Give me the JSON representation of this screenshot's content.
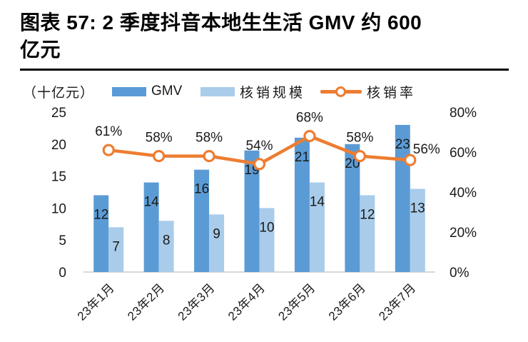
{
  "title": {
    "line1": "图表 57: 2 季度抖音本地生生活 GMV 约 600",
    "line2": "亿元"
  },
  "legend": {
    "unit_label": "（十亿元）",
    "position": "top"
  },
  "colors": {
    "bar_dark": "#5B9BD5",
    "bar_light": "#A9CCEA",
    "line_orange": "#ED7D31",
    "axis_baseline": "#D9D9D9",
    "text": "#1A1A1A",
    "title_text": "#000000",
    "title_rule": "#000000"
  },
  "chart_data": {
    "type": "bar",
    "subtype": "grouped-bars-with-line-overlay",
    "categories": [
      "23年1月",
      "23年2月",
      "23年3月",
      "23年4月",
      "23年5月",
      "23年6月",
      "23年7月"
    ],
    "series": [
      {
        "name": "GMV",
        "type": "bar",
        "axis": "left",
        "color": "#5B9BD5",
        "values": [
          12,
          14,
          16,
          19,
          21,
          20,
          23
        ]
      },
      {
        "name": "核销规模",
        "type": "bar",
        "axis": "left",
        "color": "#A9CCEA",
        "values": [
          7,
          8,
          9,
          10,
          14,
          12,
          13
        ]
      },
      {
        "name": "核销率",
        "type": "line",
        "axis": "right",
        "color": "#ED7D31",
        "values": [
          61,
          58,
          58,
          54,
          68,
          58,
          56
        ],
        "labels": [
          "61%",
          "58%",
          "58%",
          "54%",
          "68%",
          "58%",
          "56%"
        ]
      }
    ],
    "left_axis": {
      "title": "（十亿元）",
      "range": [
        0,
        25
      ],
      "ticks": [
        0,
        5,
        10,
        15,
        20,
        25
      ]
    },
    "right_axis": {
      "range": [
        0,
        80
      ],
      "ticks": [
        0,
        20,
        40,
        60,
        80
      ],
      "tick_labels": [
        "0%",
        "20%",
        "40%",
        "60%",
        "80%"
      ]
    },
    "grid": false,
    "legend_position": "top"
  }
}
